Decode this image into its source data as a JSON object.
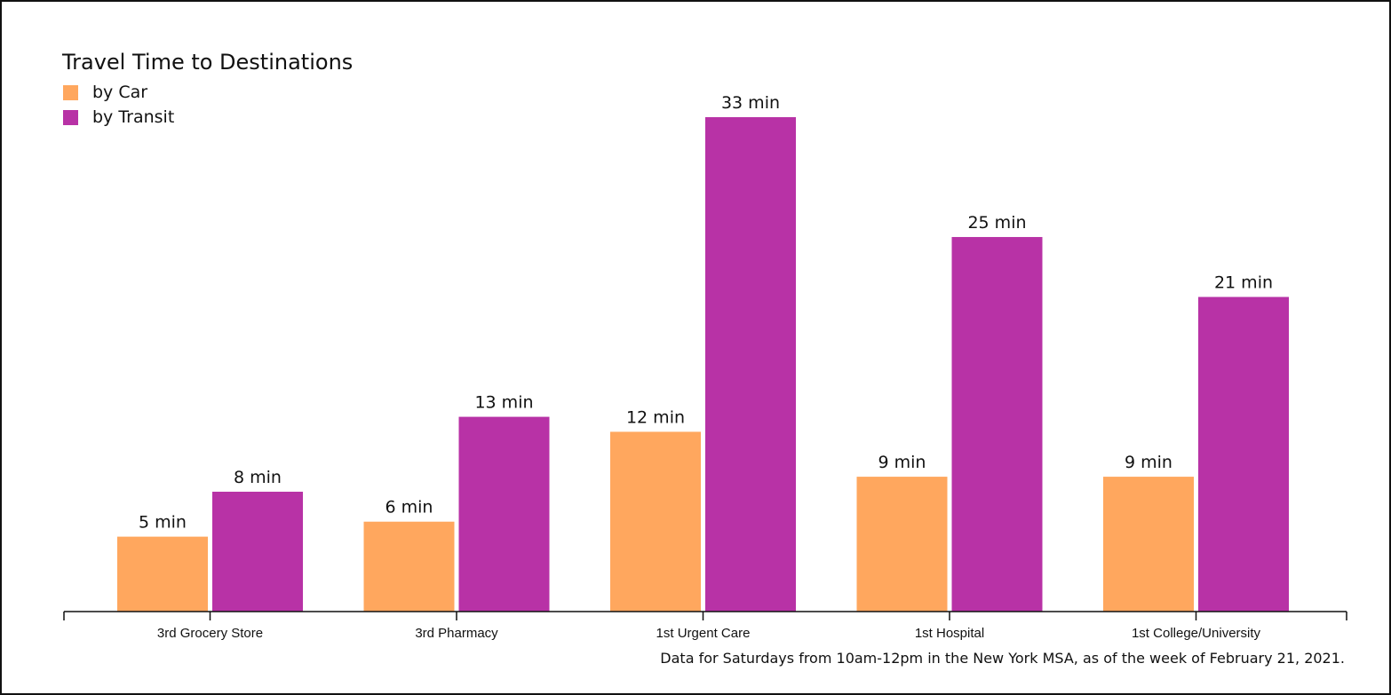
{
  "chart_data": {
    "type": "bar",
    "title": "Travel Time to Destinations",
    "categories": [
      "3rd Grocery Store",
      "3rd Pharmacy",
      "1st Urgent Care",
      "1st Hospital",
      "1st College/University"
    ],
    "series": [
      {
        "name": "by Car",
        "color": "#FFA75E",
        "values": [
          5,
          6,
          12,
          9,
          9
        ],
        "labels": [
          "5 min",
          "6 min",
          "12 min",
          "9 min",
          "9 min"
        ]
      },
      {
        "name": "by Transit",
        "color": "#B832A6",
        "values": [
          8,
          13,
          33,
          25,
          21
        ],
        "labels": [
          "8 min",
          "13 min",
          "33 min",
          "25 min",
          "21 min"
        ]
      }
    ],
    "xlabel": "",
    "ylabel": "",
    "ylim": [
      0,
      33
    ],
    "grid": false,
    "legend": "top-left",
    "note": "Data for Saturdays from 10am-12pm in the New York MSA, as of the week of February 21, 2021."
  }
}
